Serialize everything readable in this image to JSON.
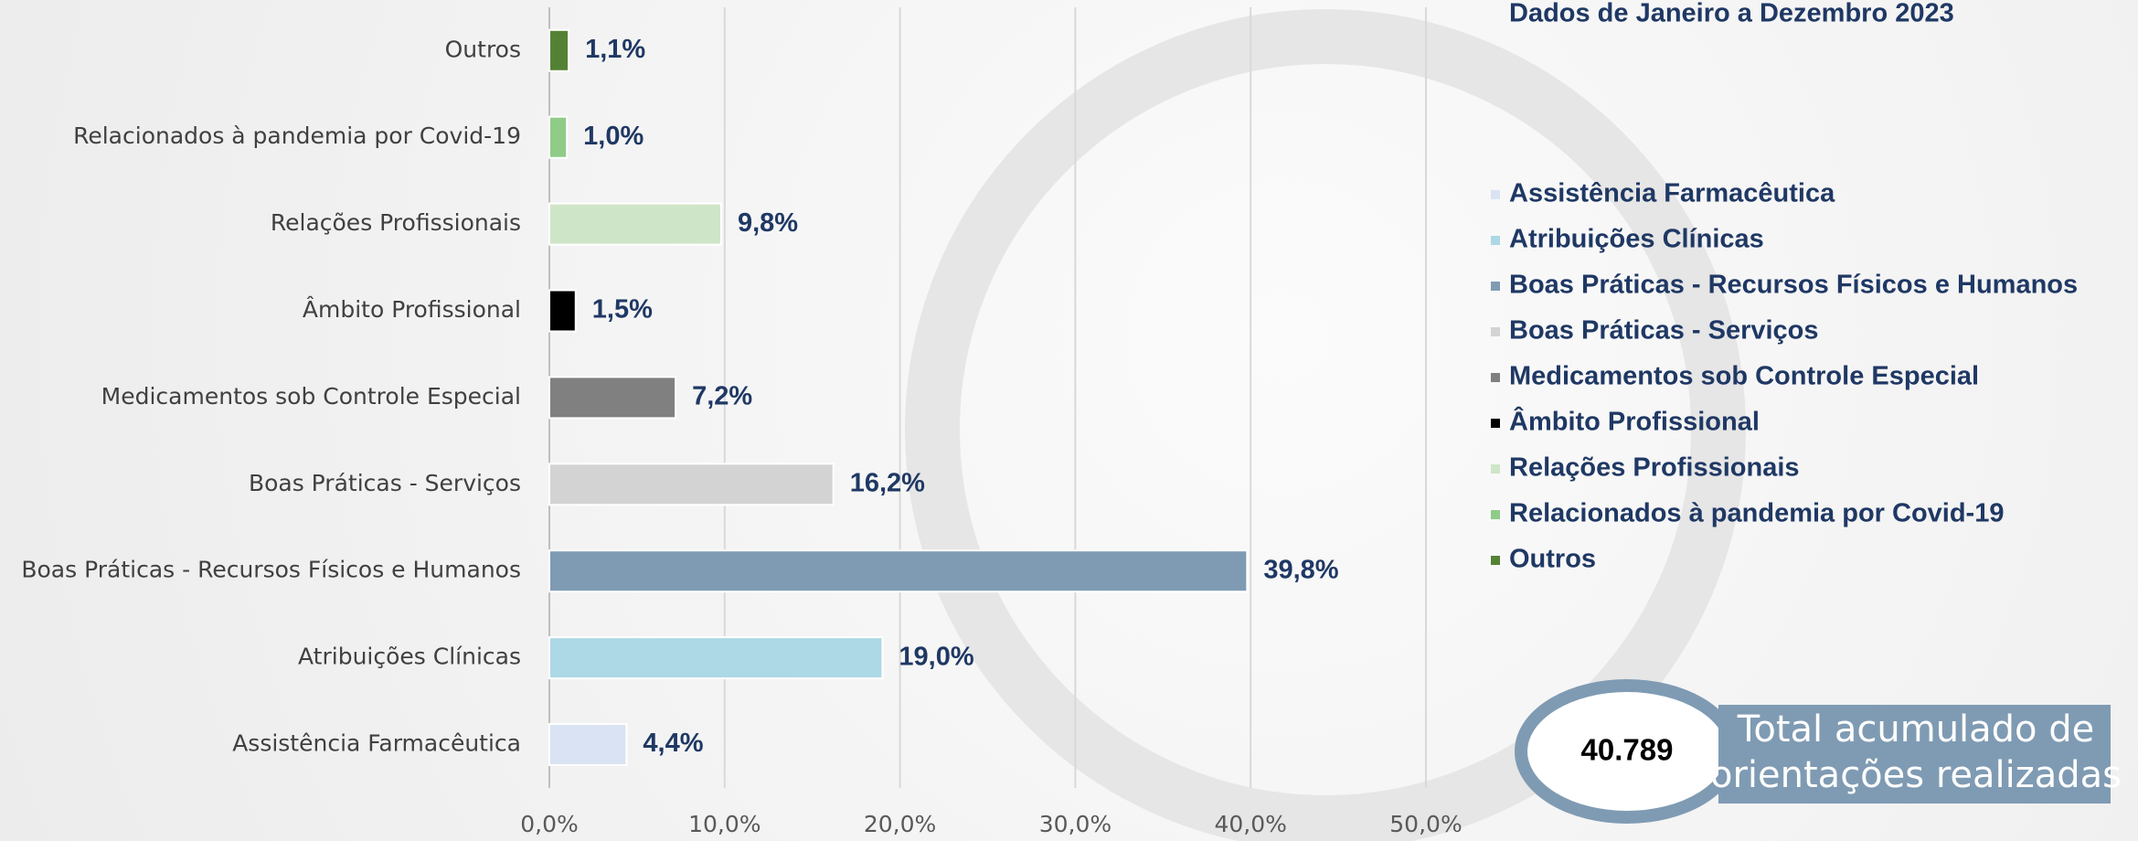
{
  "chart_data": {
    "type": "bar",
    "orientation": "horizontal",
    "title": "Dados de Janeiro a Dezembro 2023",
    "categories": [
      "Assistência Farmacêutica",
      "Atribuições Clínicas",
      "Boas Práticas - Recursos Físicos e Humanos",
      "Boas Práticas - Serviços",
      "Medicamentos sob Controle Especial",
      "Âmbito Profissional",
      "Relações Profissionais",
      "Relacionados à pandemia por Covid-19",
      "Outros"
    ],
    "values": [
      4.4,
      19.0,
      39.8,
      16.2,
      7.2,
      1.5,
      9.8,
      1.0,
      1.1
    ],
    "value_labels": [
      "4,4%",
      "19,0%",
      "39,8%",
      "16,2%",
      "7,2%",
      "1,5%",
      "9,8%",
      "1,0%",
      "1,1%"
    ],
    "colors": [
      "#dae3f3",
      "#add8e6",
      "#7f9bb3",
      "#d3d3d3",
      "#808080",
      "#000000",
      "#cfe5c8",
      "#8fcc87",
      "#548235"
    ],
    "xlim": [
      0,
      50
    ],
    "xticks": [
      {
        "value": 0,
        "label": "0,0%"
      },
      {
        "value": 10,
        "label": "10,0%"
      },
      {
        "value": 20,
        "label": "20,0%"
      },
      {
        "value": 30,
        "label": "30,0%"
      },
      {
        "value": 40,
        "label": "40,0%"
      },
      {
        "value": 50,
        "label": "50,0%"
      }
    ],
    "grid": true,
    "legend": "right",
    "total": "40.789",
    "total_caption": [
      "Total acumulado de",
      "orientações realizadas"
    ]
  }
}
